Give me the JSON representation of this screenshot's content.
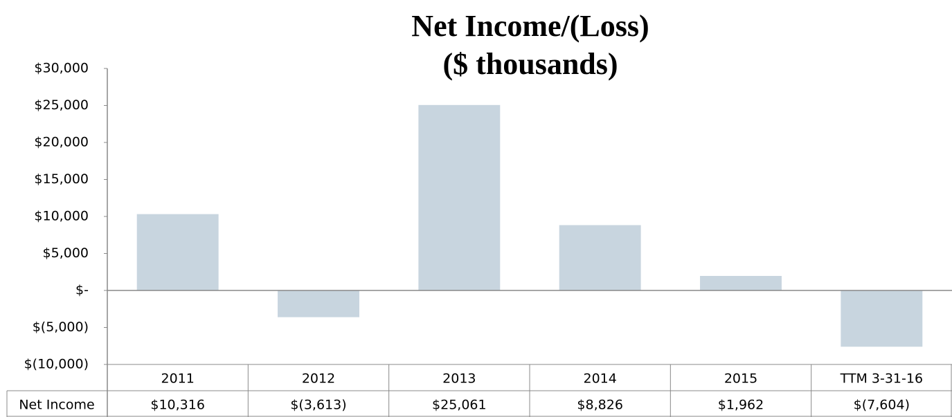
{
  "chart_data": {
    "type": "bar",
    "title": "Net Income/(Loss)",
    "subtitle": "($ thousands)",
    "categories": [
      "2011",
      "2012",
      "2013",
      "2014",
      "2015",
      "TTM 3-31-16"
    ],
    "series": [
      {
        "name": "Net Income",
        "color": "#c8d5df",
        "values": [
          10316,
          -3613,
          25061,
          8826,
          1962,
          -7604
        ],
        "value_labels": [
          "$10,316",
          "$(3,613)",
          "$25,061",
          "$8,826",
          "$1,962",
          "$(7,604)"
        ]
      }
    ],
    "ylim": [
      -10000,
      30000
    ],
    "yticks": [
      {
        "value": -10000,
        "label": "$(10,000)"
      },
      {
        "value": -5000,
        "label": "$(5,000)"
      },
      {
        "value": 0,
        "label": "$-"
      },
      {
        "value": 5000,
        "label": "$5,000"
      },
      {
        "value": 10000,
        "label": "$10,000"
      },
      {
        "value": 15000,
        "label": "$15,000"
      },
      {
        "value": 20000,
        "label": "$20,000"
      },
      {
        "value": 25000,
        "label": "$25,000"
      },
      {
        "value": 30000,
        "label": "$30,000"
      }
    ],
    "grid": false
  }
}
